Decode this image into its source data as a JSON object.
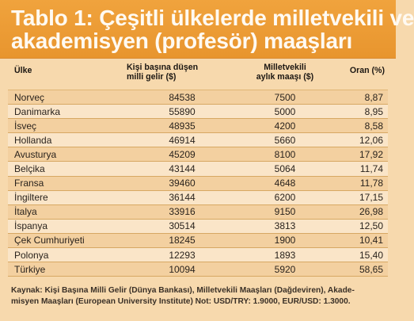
{
  "title": {
    "line1": "Tablo 1: Çeşitli ülkelerde milletvekili ve",
    "line2": "akademisyen (profesör) maaşları"
  },
  "table": {
    "headers": {
      "country": "Ülke",
      "income_line1": "Kişi başına düşen",
      "income_line2": "milli gelir ($)",
      "salary_line1": "Milletvekili",
      "salary_line2": "aylık maaşı ($)",
      "ratio": "Oran (%)"
    },
    "rows": [
      {
        "country": "Norveç",
        "income": "84538",
        "salary": "7500",
        "ratio": "8,87"
      },
      {
        "country": "Danimarka",
        "income": "55890",
        "salary": "5000",
        "ratio": "8,95"
      },
      {
        "country": "İsveç",
        "income": "48935",
        "salary": "4200",
        "ratio": "8,58"
      },
      {
        "country": "Hollanda",
        "income": "46914",
        "salary": "5660",
        "ratio": "12,06"
      },
      {
        "country": "Avusturya",
        "income": "45209",
        "salary": "8100",
        "ratio": "17,92"
      },
      {
        "country": "Belçika",
        "income": "43144",
        "salary": "5064",
        "ratio": "11,74"
      },
      {
        "country": "Fransa",
        "income": "39460",
        "salary": "4648",
        "ratio": "11,78"
      },
      {
        "country": "İngiltere",
        "income": "36144",
        "salary": "6200",
        "ratio": "17,15"
      },
      {
        "country": "İtalya",
        "income": "33916",
        "salary": "9150",
        "ratio": "26,98"
      },
      {
        "country": "İspanya",
        "income": "30514",
        "salary": "3813",
        "ratio": "12,50"
      },
      {
        "country": "Çek Cumhuriyeti",
        "income": "18245",
        "salary": "1900",
        "ratio": "10,41"
      },
      {
        "country": "Polonya",
        "income": "12293",
        "salary": "1893",
        "ratio": "15,40"
      },
      {
        "country": "Türkiye",
        "income": "10094",
        "salary": "5920",
        "ratio": "58,65"
      }
    ]
  },
  "footnote": {
    "line1": "Kaynak: Kişi Başına Milli Gelir (Dünya Bankası), Milletvekili Maaşları (Dağdeviren), Akade-",
    "line2": "misyen Maaşları (European University Institute) Not: USD/TRY: 1.9000, EUR/USD: 1.3000."
  }
}
